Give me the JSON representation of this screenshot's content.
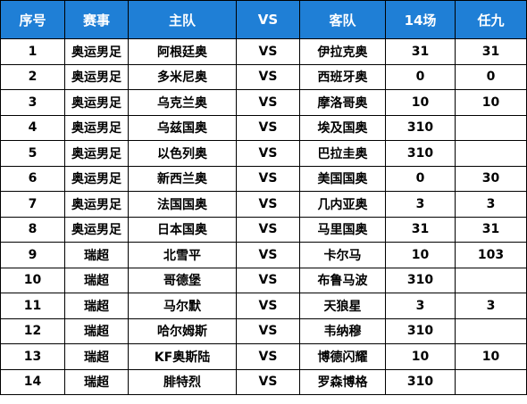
{
  "table": {
    "headers": {
      "seq": "序号",
      "event": "赛事",
      "home": "主队",
      "vs": "VS",
      "away": "客队",
      "col14": "14场",
      "r9": "任九"
    },
    "rows": [
      {
        "seq": "1",
        "event": "奥运男足",
        "home": "阿根廷奥",
        "vs": "VS",
        "away": "伊拉克奥",
        "col14": "31",
        "r9": "31"
      },
      {
        "seq": "2",
        "event": "奥运男足",
        "home": "多米尼奥",
        "vs": "VS",
        "away": "西班牙奥",
        "col14": "0",
        "r9": "0"
      },
      {
        "seq": "3",
        "event": "奥运男足",
        "home": "乌克兰奥",
        "vs": "VS",
        "away": "摩洛哥奥",
        "col14": "10",
        "r9": "10"
      },
      {
        "seq": "4",
        "event": "奥运男足",
        "home": "乌兹国奥",
        "vs": "VS",
        "away": "埃及国奥",
        "col14": "310",
        "r9": ""
      },
      {
        "seq": "5",
        "event": "奥运男足",
        "home": "以色列奥",
        "vs": "VS",
        "away": "巴拉圭奥",
        "col14": "310",
        "r9": ""
      },
      {
        "seq": "6",
        "event": "奥运男足",
        "home": "新西兰奥",
        "vs": "VS",
        "away": "美国国奥",
        "col14": "0",
        "r9": "30"
      },
      {
        "seq": "7",
        "event": "奥运男足",
        "home": "法国国奥",
        "vs": "VS",
        "away": "几内亚奥",
        "col14": "3",
        "r9": "3"
      },
      {
        "seq": "8",
        "event": "奥运男足",
        "home": "日本国奥",
        "vs": "VS",
        "away": "马里国奥",
        "col14": "31",
        "r9": "31"
      },
      {
        "seq": "9",
        "event": "瑞超",
        "home": "北雪平",
        "vs": "VS",
        "away": "卡尔马",
        "col14": "10",
        "r9": "103"
      },
      {
        "seq": "10",
        "event": "瑞超",
        "home": "哥德堡",
        "vs": "VS",
        "away": "布鲁马波",
        "col14": "310",
        "r9": ""
      },
      {
        "seq": "11",
        "event": "瑞超",
        "home": "马尔默",
        "vs": "VS",
        "away": "天狼星",
        "col14": "3",
        "r9": "3"
      },
      {
        "seq": "12",
        "event": "瑞超",
        "home": "哈尔姆斯",
        "vs": "VS",
        "away": "韦纳穆",
        "col14": "310",
        "r9": ""
      },
      {
        "seq": "13",
        "event": "瑞超",
        "home": "KF奥斯陆",
        "vs": "VS",
        "away": "博德闪耀",
        "col14": "10",
        "r9": "10"
      },
      {
        "seq": "14",
        "event": "瑞超",
        "home": "腓特烈",
        "vs": "VS",
        "away": "罗森博格",
        "col14": "310",
        "r9": ""
      }
    ]
  },
  "colors": {
    "header_bg": "#1f7fd6",
    "header_text": "#ffffff",
    "border": "#000000"
  }
}
